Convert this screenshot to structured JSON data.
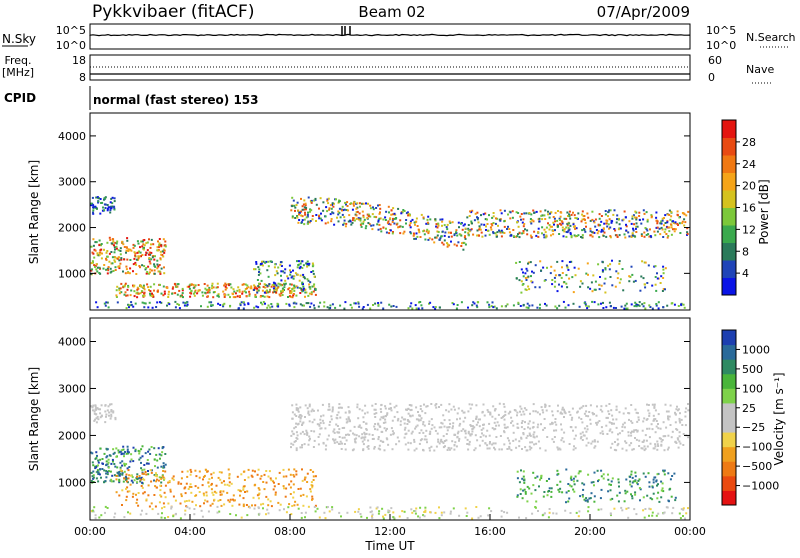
{
  "header": {
    "title": "Pykkvibaer (fitACF)",
    "beam": "Beam 02",
    "date": "07/Apr/2009"
  },
  "nsky_panel": {
    "label": "N.Sky",
    "right_label": "N.Search",
    "left_ticks": [
      "10^5",
      "10^0"
    ],
    "right_ticks": [
      "10^5",
      "10^0"
    ]
  },
  "freq_panel": {
    "label_line1": "Freq.",
    "label_line2": "[MHz]",
    "right_label": "Nave",
    "left_ticks": [
      "18",
      "8"
    ],
    "right_ticks": [
      "60",
      "0"
    ]
  },
  "cpid": {
    "label": "CPID",
    "value": "normal (fast stereo) 153"
  },
  "chart_data": [
    {
      "type": "heatmap",
      "name": "power",
      "ylabel": "Slant Range [km]",
      "xlabel": "",
      "ylim": [
        200,
        4500
      ],
      "y_ticks": [
        "1000",
        "2000",
        "3000",
        "4000"
      ],
      "colorbar": {
        "label": "Power [dB]",
        "ticks": [
          "4",
          "8",
          "12",
          "16",
          "20",
          "24",
          "28"
        ],
        "colors": [
          "#0a14e6",
          "#1f44b8",
          "#2a7a5a",
          "#3aa94d",
          "#7cc83a",
          "#d5c21e",
          "#f5a419",
          "#f07812",
          "#e84a12",
          "#e41510"
        ]
      }
    },
    {
      "type": "heatmap",
      "name": "velocity",
      "ylabel": "Slant Range [km]",
      "xlabel": "Time UT",
      "ylim": [
        200,
        4500
      ],
      "y_ticks": [
        "1000",
        "2000",
        "3000",
        "4000"
      ],
      "x_ticks": [
        "00:00",
        "04:00",
        "08:00",
        "12:00",
        "16:00",
        "20:00",
        "00:00"
      ],
      "colorbar": {
        "label": "Velocity [m s⁻¹]",
        "ticks": [
          "1000",
          "500",
          "100",
          "25",
          "−25",
          "−100",
          "−500",
          "−1000"
        ],
        "colors": [
          "#1d3fb0",
          "#2a6a9a",
          "#2f8a62",
          "#4ab53a",
          "#7ed24a",
          "#c4c4c4",
          "#c4c4c4",
          "#f0d24a",
          "#f0a01e",
          "#ee7a14",
          "#ea4a10",
          "#e41212"
        ]
      }
    }
  ]
}
